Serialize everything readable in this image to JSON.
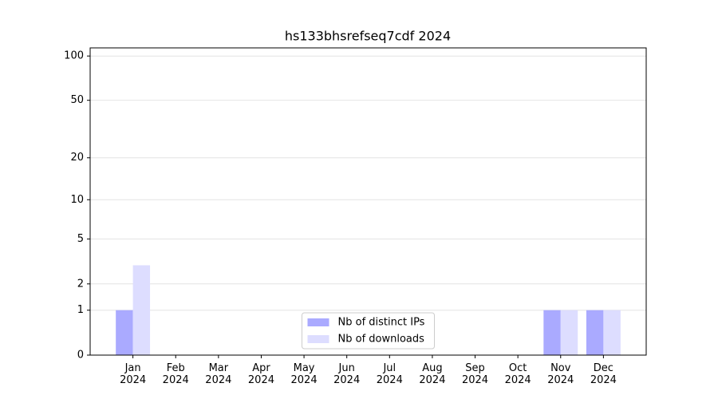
{
  "chart_data": {
    "type": "bar",
    "title": "hs133bhsrefseq7cdf 2024",
    "categories": [
      "Jan\n2024",
      "Feb\n2024",
      "Mar\n2024",
      "Apr\n2024",
      "May\n2024",
      "Jun\n2024",
      "Jul\n2024",
      "Aug\n2024",
      "Sep\n2024",
      "Oct\n2024",
      "Nov\n2024",
      "Dec\n2024"
    ],
    "series": [
      {
        "name": "Nb of distinct IPs",
        "color": "#aaaaff",
        "values": [
          1,
          0,
          0,
          0,
          0,
          0,
          0,
          0,
          0,
          0,
          1,
          1
        ]
      },
      {
        "name": "Nb of downloads",
        "color": "#ddddff",
        "values": [
          3,
          0,
          0,
          0,
          0,
          0,
          0,
          0,
          0,
          0,
          1,
          1
        ]
      }
    ],
    "y_scale": "log1p",
    "ylim": [
      0,
      113.5
    ],
    "yticks": [
      0,
      1,
      2,
      5,
      10,
      20,
      50,
      100
    ],
    "grid": true,
    "legend": "lower center"
  }
}
